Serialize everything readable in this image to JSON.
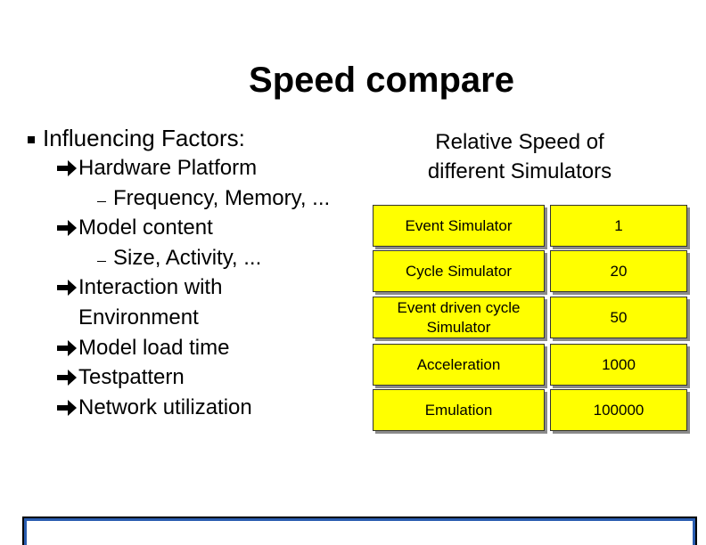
{
  "title": "Speed compare",
  "left": {
    "heading": "Influencing Factors:",
    "items": [
      {
        "level": 1,
        "lines": [
          "Hardware Platform"
        ]
      },
      {
        "level": 2,
        "lines": [
          "Frequency, Memory, ..."
        ]
      },
      {
        "level": 1,
        "lines": [
          "Model content"
        ]
      },
      {
        "level": 2,
        "lines": [
          "Size, Activity, ..."
        ]
      },
      {
        "level": 1,
        "lines": [
          "Interaction with",
          "Environment"
        ]
      },
      {
        "level": 1,
        "lines": [
          "Model load time"
        ]
      },
      {
        "level": 1,
        "lines": [
          "Testpattern"
        ]
      },
      {
        "level": 1,
        "lines": [
          "Network utilization"
        ]
      }
    ]
  },
  "right": {
    "heading": [
      "Relative Speed of",
      "different Simulators"
    ],
    "table": {
      "rows": [
        [
          [
            "Event Simulator"
          ],
          "1"
        ],
        [
          [
            "Cycle Simulator"
          ],
          "20"
        ],
        [
          [
            "Event driven cycle",
            "Simulator"
          ],
          "50"
        ],
        [
          [
            "Acceleration"
          ],
          "1000"
        ],
        [
          [
            "Emulation"
          ],
          "100000"
        ]
      ]
    }
  }
}
